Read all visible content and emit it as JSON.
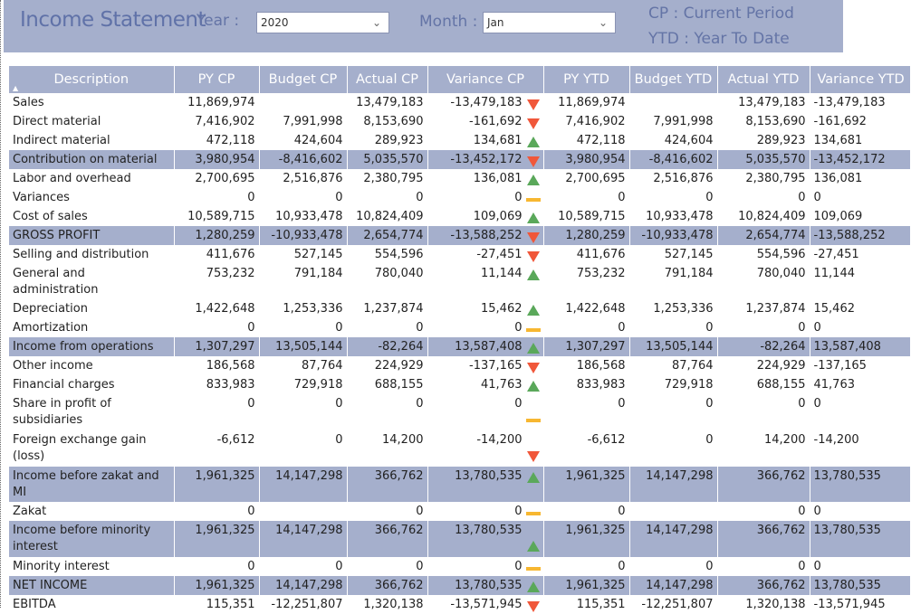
{
  "header": {
    "title": "Income Statement",
    "year_label": "Year :",
    "year_value": "2020",
    "month_label": "Month :",
    "month_value": "Jan",
    "legend_cp": "CP : Current Period",
    "legend_ytd": "YTD : Year To Date"
  },
  "table": {
    "columns": [
      "Description",
      "PY CP",
      "Budget CP",
      "Actual CP",
      "Variance CP",
      "PY YTD",
      "Budget YTD",
      "Actual YTD",
      "Variance YTD"
    ],
    "rows": [
      {
        "desc": "Sales",
        "hl": false,
        "py_cp": "11,869,974",
        "bud_cp": "",
        "act_cp": "13,479,183",
        "var_cp": "-13,479,183",
        "ind": "down",
        "py_ytd": "11,869,974",
        "bud_ytd": "",
        "act_ytd": "13,479,183",
        "var_ytd": "-13,479,183"
      },
      {
        "desc": "Direct material",
        "hl": false,
        "py_cp": "7,416,902",
        "bud_cp": "7,991,998",
        "act_cp": "8,153,690",
        "var_cp": "-161,692",
        "ind": "down",
        "py_ytd": "7,416,902",
        "bud_ytd": "7,991,998",
        "act_ytd": "8,153,690",
        "var_ytd": "-161,692"
      },
      {
        "desc": "Indirect material",
        "hl": false,
        "py_cp": "472,118",
        "bud_cp": "424,604",
        "act_cp": "289,923",
        "var_cp": "134,681",
        "ind": "up",
        "py_ytd": "472,118",
        "bud_ytd": "424,604",
        "act_ytd": "289,923",
        "var_ytd": "134,681"
      },
      {
        "desc": "Contribution on material",
        "hl": true,
        "py_cp": "3,980,954",
        "bud_cp": "-8,416,602",
        "act_cp": "5,035,570",
        "var_cp": "-13,452,172",
        "ind": "down",
        "py_ytd": "3,980,954",
        "bud_ytd": "-8,416,602",
        "act_ytd": "5,035,570",
        "var_ytd": "-13,452,172"
      },
      {
        "desc": "Labor and overhead",
        "hl": false,
        "py_cp": "2,700,695",
        "bud_cp": "2,516,876",
        "act_cp": "2,380,795",
        "var_cp": "136,081",
        "ind": "up",
        "py_ytd": "2,700,695",
        "bud_ytd": "2,516,876",
        "act_ytd": "2,380,795",
        "var_ytd": "136,081"
      },
      {
        "desc": "Variances",
        "hl": false,
        "py_cp": "0",
        "bud_cp": "0",
        "act_cp": "0",
        "var_cp": "0",
        "ind": "flat",
        "py_ytd": "0",
        "bud_ytd": "0",
        "act_ytd": "0",
        "var_ytd": "0"
      },
      {
        "desc": "Cost of sales",
        "hl": false,
        "py_cp": "10,589,715",
        "bud_cp": "10,933,478",
        "act_cp": "10,824,409",
        "var_cp": "109,069",
        "ind": "up",
        "py_ytd": "10,589,715",
        "bud_ytd": "10,933,478",
        "act_ytd": "10,824,409",
        "var_ytd": "109,069"
      },
      {
        "desc": "GROSS PROFIT",
        "hl": true,
        "py_cp": "1,280,259",
        "bud_cp": "-10,933,478",
        "act_cp": "2,654,774",
        "var_cp": "-13,588,252",
        "ind": "down",
        "py_ytd": "1,280,259",
        "bud_ytd": "-10,933,478",
        "act_ytd": "2,654,774",
        "var_ytd": "-13,588,252"
      },
      {
        "desc": "Selling and distribution",
        "hl": false,
        "py_cp": "411,676",
        "bud_cp": "527,145",
        "act_cp": "554,596",
        "var_cp": "-27,451",
        "ind": "down",
        "py_ytd": "411,676",
        "bud_ytd": "527,145",
        "act_ytd": "554,596",
        "var_ytd": "-27,451"
      },
      {
        "desc": "General and administration",
        "hl": false,
        "py_cp": "753,232",
        "bud_cp": "791,184",
        "act_cp": "780,040",
        "var_cp": "11,144",
        "ind": "up",
        "py_ytd": "753,232",
        "bud_ytd": "791,184",
        "act_ytd": "780,040",
        "var_ytd": "11,144"
      },
      {
        "desc": "Depreciation",
        "hl": false,
        "py_cp": "1,422,648",
        "bud_cp": "1,253,336",
        "act_cp": "1,237,874",
        "var_cp": "15,462",
        "ind": "up",
        "py_ytd": "1,422,648",
        "bud_ytd": "1,253,336",
        "act_ytd": "1,237,874",
        "var_ytd": "15,462"
      },
      {
        "desc": "Amortization",
        "hl": false,
        "py_cp": "0",
        "bud_cp": "0",
        "act_cp": "0",
        "var_cp": "0",
        "ind": "flat",
        "py_ytd": "0",
        "bud_ytd": "0",
        "act_ytd": "0",
        "var_ytd": "0"
      },
      {
        "desc": "Income from operations",
        "hl": true,
        "py_cp": "1,307,297",
        "bud_cp": "13,505,144",
        "act_cp": "-82,264",
        "var_cp": "13,587,408",
        "ind": "up",
        "py_ytd": "1,307,297",
        "bud_ytd": "13,505,144",
        "act_ytd": "-82,264",
        "var_ytd": "13,587,408"
      },
      {
        "desc": "Other income",
        "hl": false,
        "py_cp": "186,568",
        "bud_cp": "87,764",
        "act_cp": "224,929",
        "var_cp": "-137,165",
        "ind": "down",
        "py_ytd": "186,568",
        "bud_ytd": "87,764",
        "act_ytd": "224,929",
        "var_ytd": "-137,165"
      },
      {
        "desc": "Financial charges",
        "hl": false,
        "py_cp": "833,983",
        "bud_cp": "729,918",
        "act_cp": "688,155",
        "var_cp": "41,763",
        "ind": "up",
        "py_ytd": "833,983",
        "bud_ytd": "729,918",
        "act_ytd": "688,155",
        "var_ytd": "41,763"
      },
      {
        "desc": "Share in profit of subsidiaries",
        "hl": false,
        "py_cp": "0",
        "bud_cp": "0",
        "act_cp": "0",
        "var_cp": "0",
        "ind": "flat",
        "py_ytd": "0",
        "bud_ytd": "0",
        "act_ytd": "0",
        "var_ytd": "0"
      },
      {
        "desc": "Foreign exchange gain (loss)",
        "hl": false,
        "py_cp": "-6,612",
        "bud_cp": "0",
        "act_cp": "14,200",
        "var_cp": "-14,200",
        "ind": "down",
        "py_ytd": "-6,612",
        "bud_ytd": "0",
        "act_ytd": "14,200",
        "var_ytd": "-14,200"
      },
      {
        "desc": "Income before zakat and MI",
        "hl": true,
        "py_cp": "1,961,325",
        "bud_cp": "14,147,298",
        "act_cp": "366,762",
        "var_cp": "13,780,535",
        "ind": "up",
        "py_ytd": "1,961,325",
        "bud_ytd": "14,147,298",
        "act_ytd": "366,762",
        "var_ytd": "13,780,535"
      },
      {
        "desc": "Zakat",
        "hl": false,
        "py_cp": "0",
        "bud_cp": "",
        "act_cp": "0",
        "var_cp": "0",
        "ind": "flat",
        "py_ytd": "0",
        "bud_ytd": "",
        "act_ytd": "0",
        "var_ytd": "0"
      },
      {
        "desc": "Income before minority interest",
        "hl": true,
        "py_cp": "1,961,325",
        "bud_cp": "14,147,298",
        "act_cp": "366,762",
        "var_cp": "13,780,535",
        "ind": "up",
        "py_ytd": "1,961,325",
        "bud_ytd": "14,147,298",
        "act_ytd": "366,762",
        "var_ytd": "13,780,535"
      },
      {
        "desc": "Minority interest",
        "hl": false,
        "py_cp": "0",
        "bud_cp": "0",
        "act_cp": "0",
        "var_cp": "0",
        "ind": "flat",
        "py_ytd": "0",
        "bud_ytd": "0",
        "act_ytd": "0",
        "var_ytd": "0"
      },
      {
        "desc": "NET INCOME",
        "hl": true,
        "py_cp": "1,961,325",
        "bud_cp": "14,147,298",
        "act_cp": "366,762",
        "var_cp": "13,780,535",
        "ind": "up",
        "py_ytd": "1,961,325",
        "bud_ytd": "14,147,298",
        "act_ytd": "366,762",
        "var_ytd": "13,780,535"
      },
      {
        "desc": "EBITDA",
        "hl": false,
        "py_cp": "115,351",
        "bud_cp": "-12,251,807",
        "act_cp": "1,320,138",
        "var_cp": "-13,571,945",
        "ind": "down",
        "py_ytd": "115,351",
        "bud_ytd": "-12,251,807",
        "act_ytd": "1,320,138",
        "var_ytd": "-13,571,945"
      }
    ]
  },
  "colors": {
    "header_bg": "#a5afcc",
    "title": "#6072a8",
    "up": "#5aa85a",
    "down": "#f0573a",
    "flat": "#f7b731"
  },
  "icons": {
    "sort": "sort-asc-icon",
    "dropdown": "chevron-down-icon",
    "up": "triangle-up-icon",
    "down": "triangle-down-icon",
    "flat": "dash-icon"
  }
}
